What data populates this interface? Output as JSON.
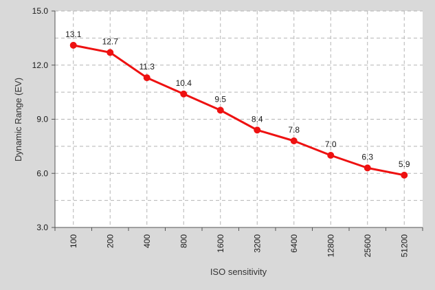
{
  "chart_data": {
    "type": "line",
    "title": "",
    "xlabel": "ISO sensitivity",
    "ylabel": "Dynamic Range (EV)",
    "categories": [
      "100",
      "200",
      "400",
      "800",
      "1600",
      "3200",
      "6400",
      "12800",
      "25600",
      "51200"
    ],
    "series": [
      {
        "values": [
          13.1,
          12.7,
          11.3,
          10.4,
          9.5,
          8.4,
          7.8,
          7.0,
          6.3,
          5.9
        ],
        "labels": [
          "13.1",
          "12.7",
          "11.3",
          "10.4",
          "9.5",
          "8.4",
          "7.8",
          "7.0",
          "6.3",
          "5.9"
        ]
      }
    ],
    "ylim": [
      3.0,
      15.0
    ],
    "yticks": [
      "3.0",
      "6.0",
      "9.0",
      "12.0",
      "15.0"
    ],
    "grid": true,
    "legend": "none",
    "colors": {
      "series": "#ee1111",
      "background": "#d9d9d9",
      "plot_area": "#ffffff",
      "grid": "#b3b3b3"
    }
  }
}
